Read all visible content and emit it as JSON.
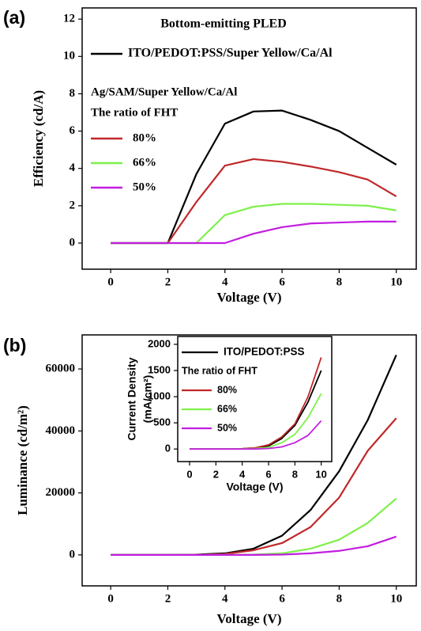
{
  "chart_data": [
    {
      "type": "line",
      "panel_label": "(a)",
      "title": "Bottom-emitting PLED",
      "xlabel": "Voltage (V)",
      "ylabel": [
        "Efficiency (cd/A)"
      ],
      "legend_notes": [
        "Ag/SAM/Super Yellow/Ca/Al",
        "The ratio of FHT"
      ],
      "x": [
        0,
        1,
        2,
        3,
        4,
        5,
        6,
        7,
        8,
        9,
        10
      ],
      "series": [
        {
          "name": "ITO/PEDOT:PSS/Super Yellow/Ca/Al",
          "color": "#000000",
          "values": [
            0,
            0,
            0,
            3.7,
            6.4,
            7.05,
            7.1,
            6.6,
            6.0,
            5.1,
            4.2
          ]
        },
        {
          "name": "80%",
          "color": "#c0282a",
          "values": [
            0,
            0,
            0,
            2.2,
            4.15,
            4.5,
            4.35,
            4.1,
            3.8,
            3.4,
            2.5
          ]
        },
        {
          "name": "66%",
          "color": "#7ef04a",
          "values": [
            0,
            0,
            0,
            0,
            1.5,
            1.95,
            2.1,
            2.1,
            2.05,
            2.0,
            1.75
          ]
        },
        {
          "name": "50%",
          "color": "#c21ee0",
          "values": [
            0,
            0,
            0,
            0,
            0,
            0.5,
            0.85,
            1.05,
            1.1,
            1.15,
            1.15
          ]
        }
      ],
      "xlim": [
        -1,
        10.7
      ],
      "ylim": [
        -1.4,
        12.6
      ],
      "xticks": [
        0,
        2,
        4,
        6,
        8,
        10
      ],
      "yticks": [
        0,
        2,
        4,
        6,
        8,
        10,
        12
      ]
    },
    {
      "type": "line",
      "panel_label": "(b)",
      "xlabel": "Voltage (V)",
      "ylabel": [
        "Luminance (cd/m²)"
      ],
      "x": [
        0,
        1,
        2,
        3,
        4,
        5,
        6,
        7,
        8,
        9,
        10
      ],
      "series": [
        {
          "color": "#000000",
          "values": [
            0,
            0,
            0,
            100,
            500,
            2000,
            6200,
            14500,
            27000,
            43500,
            64500
          ]
        },
        {
          "color": "#c0282a",
          "values": [
            0,
            0,
            0,
            0,
            300,
            1500,
            3800,
            9000,
            18500,
            33600,
            44100
          ]
        },
        {
          "color": "#7ef04a",
          "values": [
            0,
            0,
            0,
            0,
            0,
            100,
            500,
            2000,
            4900,
            10300,
            18200
          ]
        },
        {
          "color": "#c21ee0",
          "values": [
            0,
            0,
            0,
            0,
            0,
            0,
            100,
            500,
            1300,
            2800,
            5900
          ]
        }
      ],
      "xlim": [
        -1,
        10.7
      ],
      "ylim": [
        -10000,
        71000
      ],
      "xticks": [
        0,
        2,
        4,
        6,
        8,
        10
      ],
      "yticks": [
        0,
        20000,
        40000,
        60000
      ]
    },
    {
      "type": "line",
      "xlabel": "Voltage (V)",
      "ylabel": [
        "Current Density",
        "(mA/cm²)"
      ],
      "legend_notes": [
        "The ratio of FHT"
      ],
      "x": [
        0,
        1,
        2,
        3,
        4,
        5,
        6,
        7,
        8,
        9,
        10
      ],
      "series": [
        {
          "name": "ITO/PEDOT:PSS",
          "color": "#000000",
          "values": [
            0,
            0,
            0,
            0,
            5,
            20,
            60,
            200,
            450,
            900,
            1500
          ]
        },
        {
          "name": "80%",
          "color": "#c0282a",
          "values": [
            0,
            0,
            0,
            0,
            5,
            25,
            80,
            230,
            480,
            1000,
            1750
          ]
        },
        {
          "name": "66%",
          "color": "#7ef04a",
          "values": [
            0,
            0,
            0,
            0,
            0,
            10,
            30,
            120,
            280,
            600,
            1060
          ]
        },
        {
          "name": "50%",
          "color": "#c21ee0",
          "values": [
            0,
            0,
            0,
            0,
            0,
            0,
            10,
            40,
            120,
            260,
            540
          ]
        }
      ],
      "xlim": [
        -0.9,
        10.8
      ],
      "ylim": [
        -240,
        2150
      ],
      "xticks": [
        0,
        2,
        4,
        6,
        8,
        10
      ],
      "yticks": [
        0,
        500,
        1000,
        1500,
        2000
      ]
    }
  ]
}
